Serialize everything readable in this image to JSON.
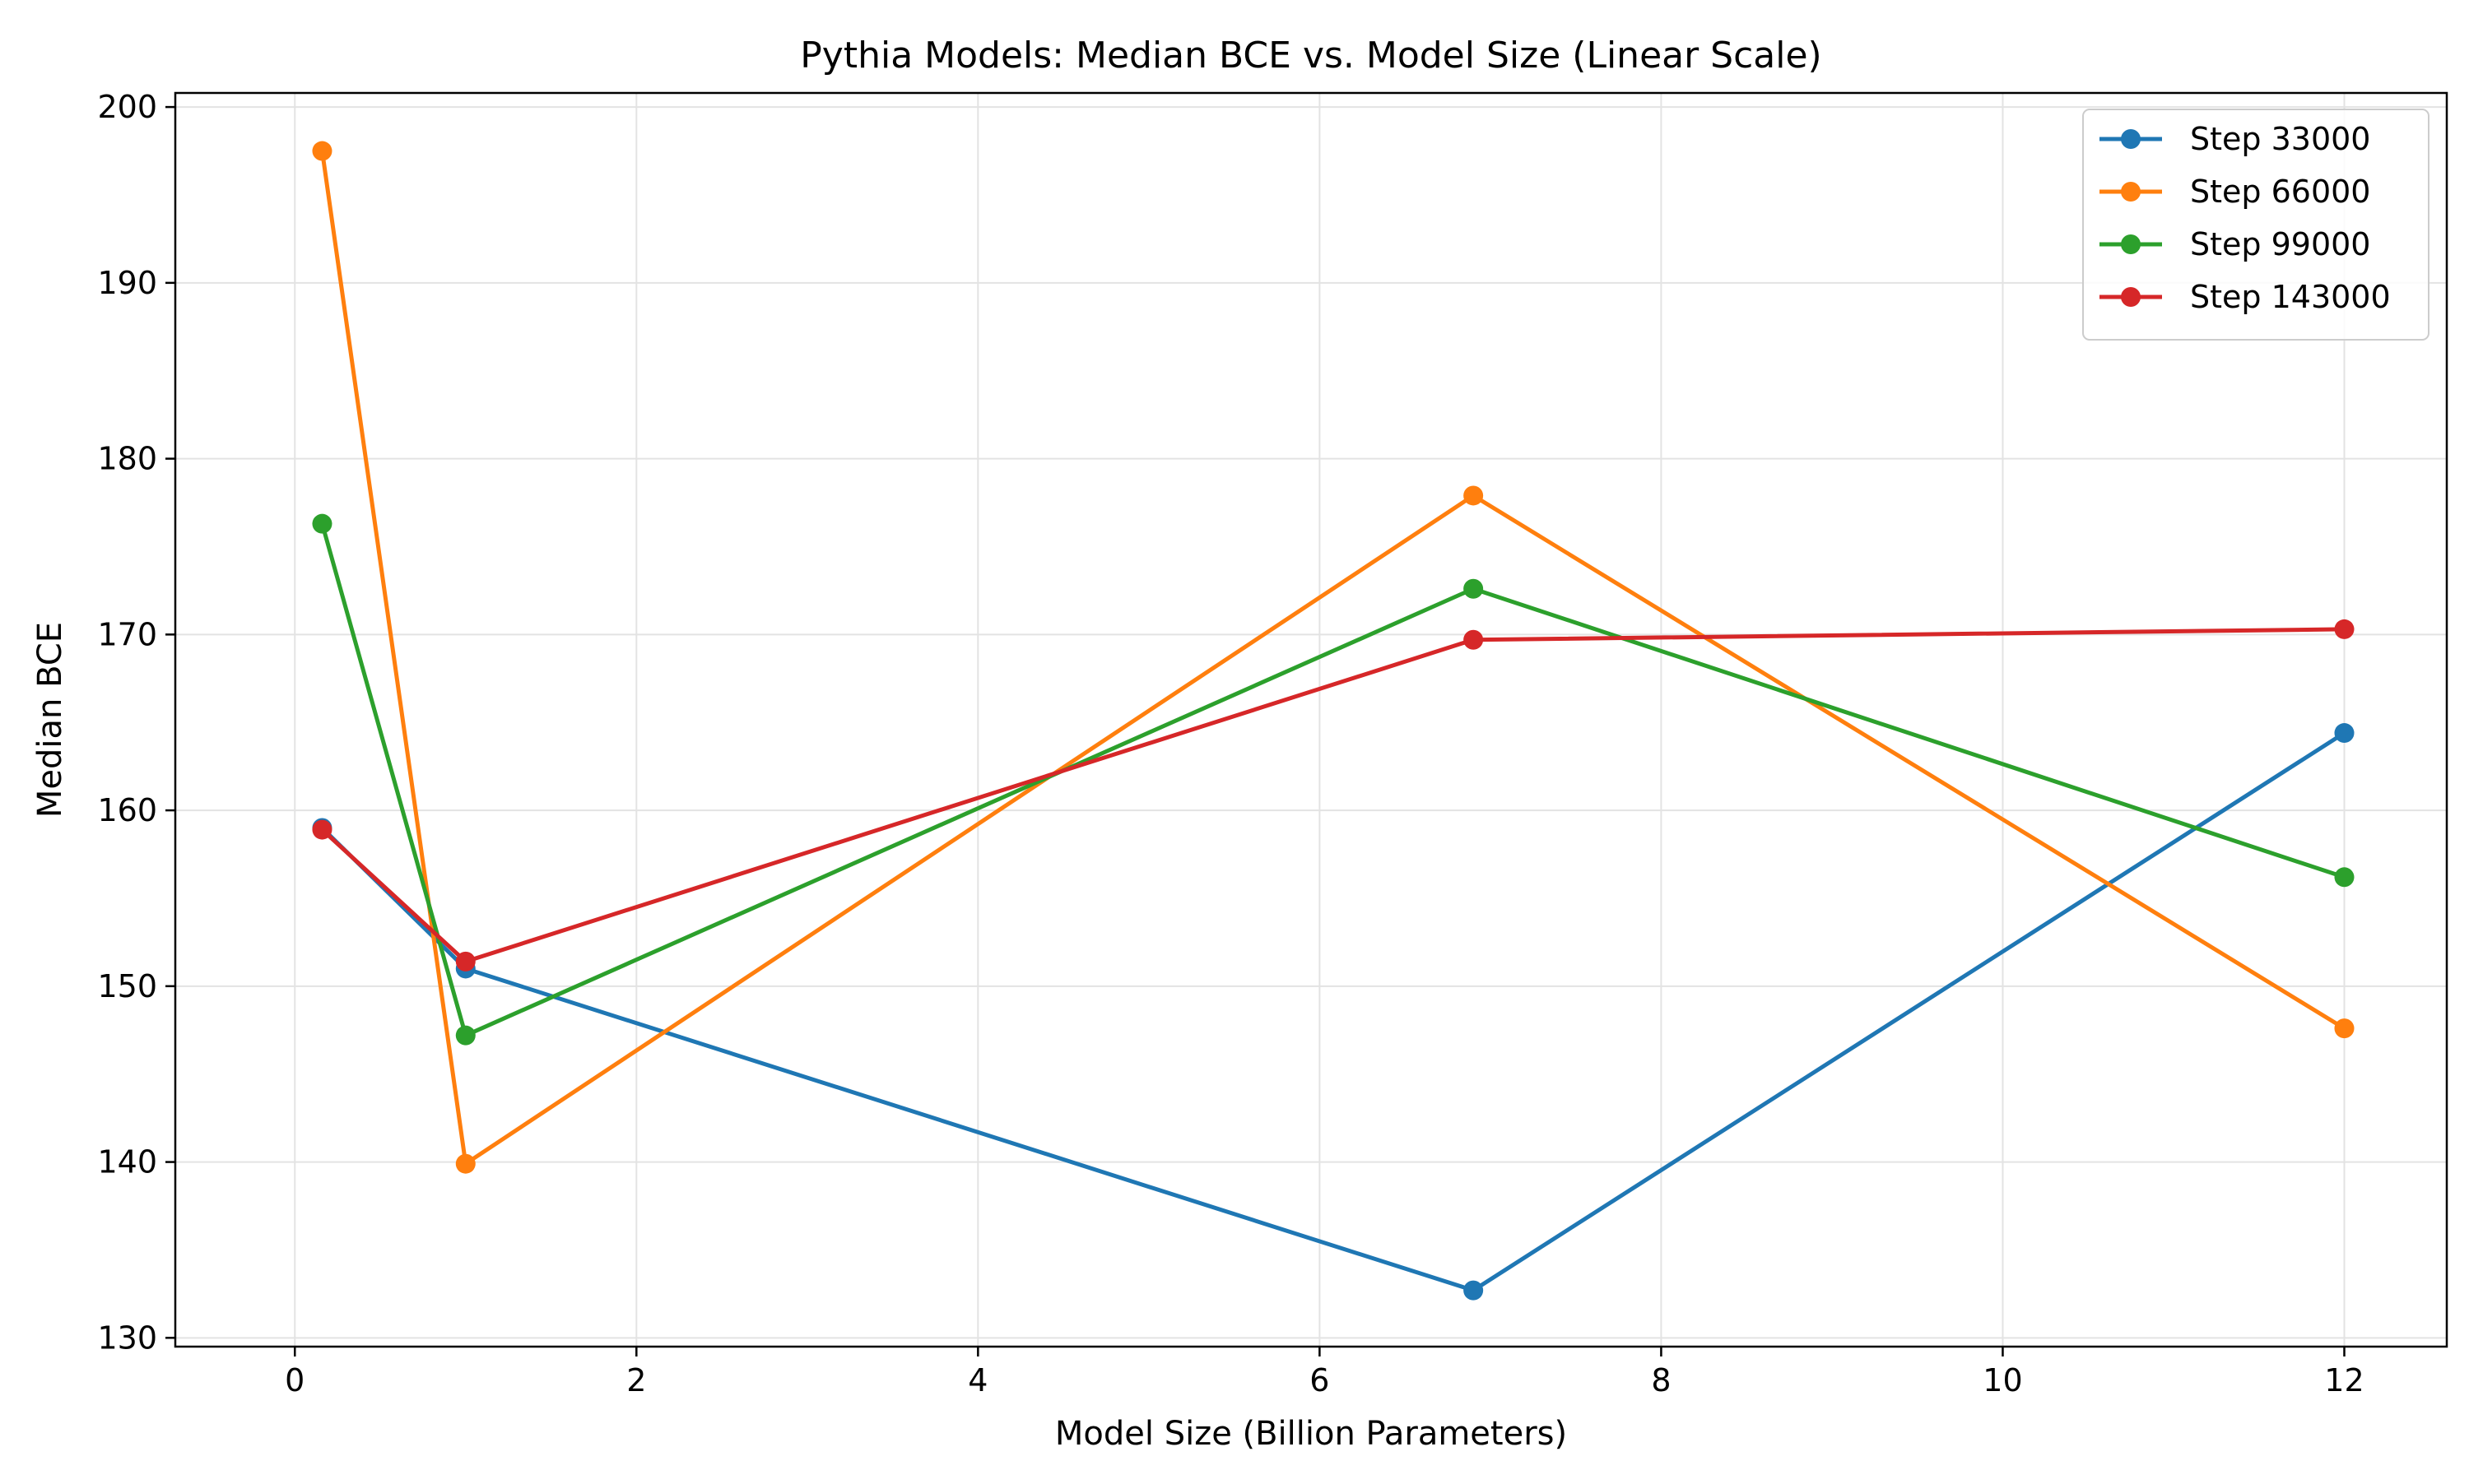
{
  "chart_data": {
    "type": "line",
    "title": "Pythia Models: Median BCE vs. Model Size (Linear Scale)",
    "xlabel": "Model Size (Billion Parameters)",
    "ylabel": "Median BCE",
    "xlim": [
      -0.7,
      12.6
    ],
    "ylim": [
      129.5,
      200.8
    ],
    "xticks": [
      0,
      2,
      4,
      6,
      8,
      10,
      12
    ],
    "xtick_labels": [
      "0",
      "2",
      "4",
      "6",
      "8",
      "10",
      "12"
    ],
    "yticks": [
      130,
      140,
      150,
      160,
      170,
      180,
      190,
      200
    ],
    "ytick_labels": [
      "130",
      "140",
      "150",
      "160",
      "170",
      "180",
      "190",
      "200"
    ],
    "grid": true,
    "legend_position": "top-right",
    "x": [
      0.16,
      1.0,
      6.9,
      12.0
    ],
    "series": [
      {
        "name": "Step 33000",
        "color": "#1f77b4",
        "values": [
          159.0,
          151.0,
          132.7,
          164.4
        ]
      },
      {
        "name": "Step 66000",
        "color": "#ff7f0e",
        "values": [
          197.5,
          139.9,
          177.9,
          147.6
        ]
      },
      {
        "name": "Step 99000",
        "color": "#2ca02c",
        "values": [
          176.3,
          147.2,
          172.6,
          156.2
        ]
      },
      {
        "name": "Step 143000",
        "color": "#d62728",
        "values": [
          158.9,
          151.4,
          169.7,
          170.3
        ]
      }
    ]
  }
}
